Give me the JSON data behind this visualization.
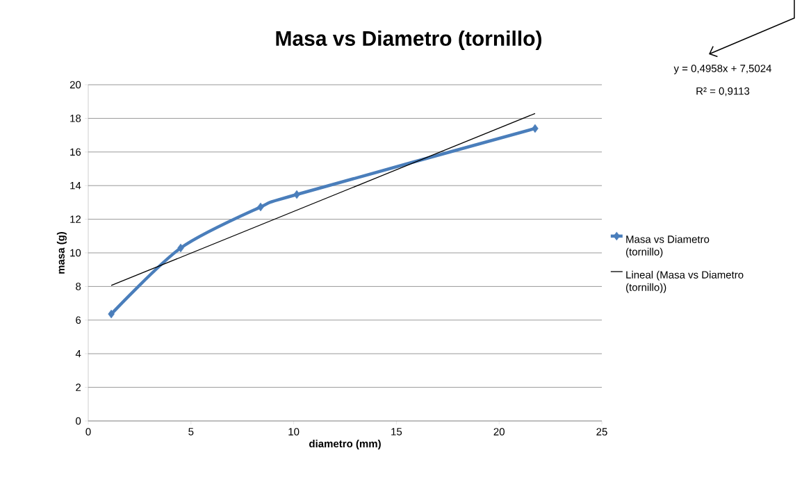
{
  "chart_data": {
    "type": "line",
    "title": "Masa vs Diametro (tornillo)",
    "xlabel": "diametro (mm)",
    "ylabel": "masa (g)",
    "annotations": [
      "y = 0,4958x + 7,5024",
      "R² = 0,9113"
    ],
    "series": [
      {
        "name": "Masa vs Diametro (tornillo)",
        "color": "#4a7ebb",
        "x": [
          1.12,
          4.5,
          8.39,
          10.15,
          21.75
        ],
        "values": [
          6.36,
          10.29,
          12.73,
          13.47,
          17.4
        ]
      },
      {
        "name": "Lineal (Masa vs Diametro (tornillo))",
        "color": "#000000",
        "x": [
          1.12,
          21.75
        ],
        "values": [
          8.06,
          18.29
        ],
        "marker": "none"
      }
    ],
    "xlim": [
      0,
      25
    ],
    "ylim": [
      0,
      20
    ],
    "xticks": [
      0,
      5,
      10,
      15,
      20,
      25
    ],
    "yticks": [
      0,
      2,
      4,
      6,
      8,
      10,
      12,
      14,
      16,
      18,
      20
    ],
    "grid": "y",
    "legend": "right",
    "marker": "diamond"
  }
}
